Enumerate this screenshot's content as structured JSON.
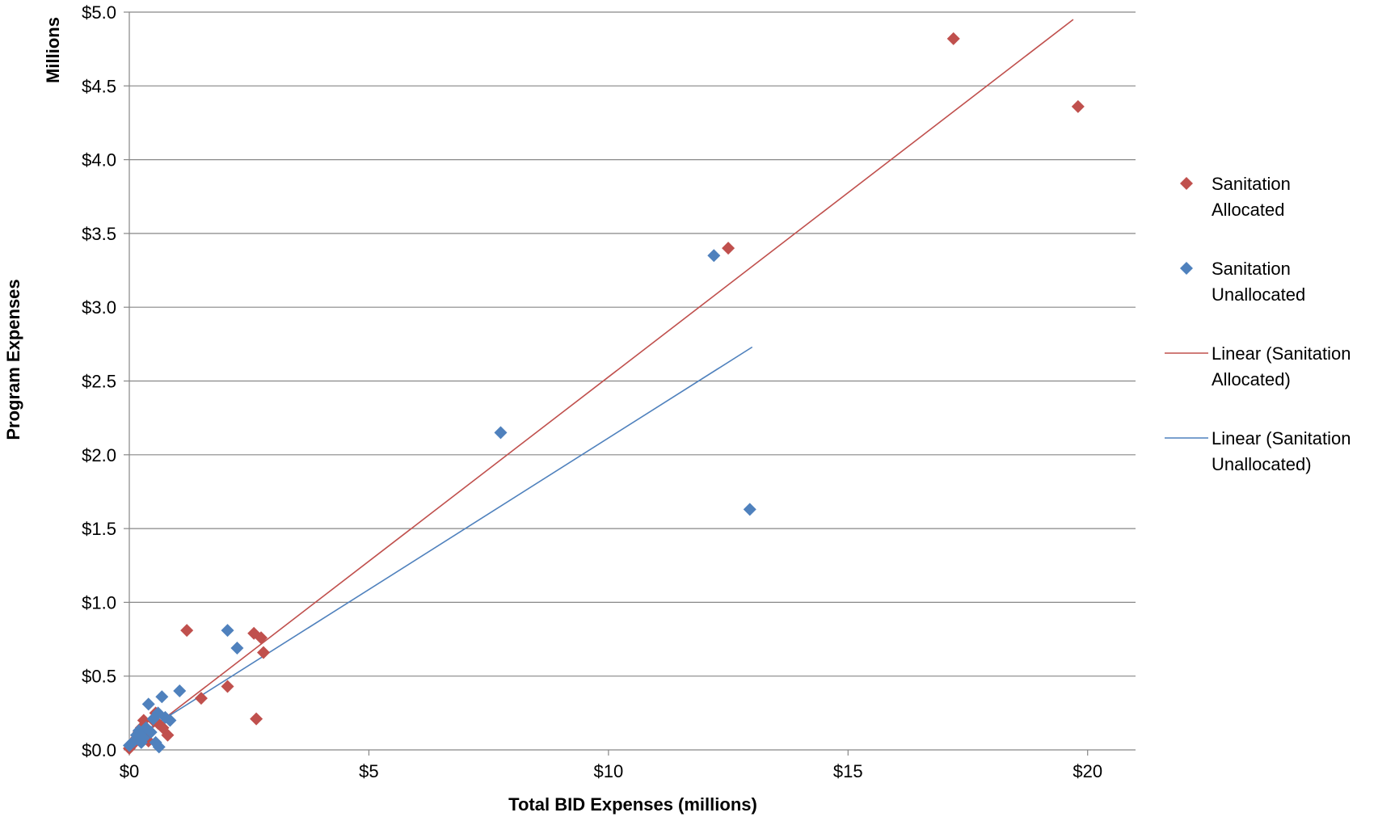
{
  "chart_data": {
    "type": "scatter",
    "title": "",
    "xlabel": "Total BID Expenses (millions)",
    "ylabel": "Program Expenses",
    "ylabel_units": "Millions",
    "xlim": [
      0,
      21
    ],
    "ylim": [
      0,
      5.0
    ],
    "x_ticks": [
      0,
      5,
      10,
      15,
      20
    ],
    "x_tick_labels": [
      "$0",
      "$5",
      "$10",
      "$15",
      "$20"
    ],
    "y_ticks": [
      0,
      0.5,
      1.0,
      1.5,
      2.0,
      2.5,
      3.0,
      3.5,
      4.0,
      4.5,
      5.0
    ],
    "y_tick_labels": [
      "$0.0",
      "$0.5",
      "$1.0",
      "$1.5",
      "$2.0",
      "$2.5",
      "$3.0",
      "$3.5",
      "$4.0",
      "$4.5",
      "$5.0"
    ],
    "grid": "horizontal",
    "legend_position": "right",
    "series": [
      {
        "name": "Sanitation Allocated",
        "name_lines": [
          "Sanitation",
          "Allocated"
        ],
        "kind": "scatter",
        "marker": "diamond",
        "color": "#C0504D",
        "points": [
          [
            0.0,
            0.01
          ],
          [
            0.05,
            0.03
          ],
          [
            0.1,
            0.05
          ],
          [
            0.15,
            0.08
          ],
          [
            0.2,
            0.12
          ],
          [
            0.25,
            0.15
          ],
          [
            0.3,
            0.2
          ],
          [
            0.35,
            0.1
          ],
          [
            0.4,
            0.06
          ],
          [
            0.5,
            0.2
          ],
          [
            0.55,
            0.25
          ],
          [
            0.6,
            0.18
          ],
          [
            0.7,
            0.15
          ],
          [
            0.8,
            0.1
          ],
          [
            1.2,
            0.81
          ],
          [
            1.5,
            0.35
          ],
          [
            2.05,
            0.43
          ],
          [
            2.6,
            0.79
          ],
          [
            2.65,
            0.21
          ],
          [
            2.75,
            0.76
          ],
          [
            2.8,
            0.66
          ],
          [
            12.5,
            3.4
          ],
          [
            17.2,
            4.82
          ],
          [
            19.8,
            4.36
          ]
        ]
      },
      {
        "name": "Sanitation Unallocated",
        "name_lines": [
          "Sanitation",
          "Unallocated"
        ],
        "kind": "scatter",
        "marker": "diamond",
        "color": "#4F81BD",
        "points": [
          [
            0.0,
            0.03
          ],
          [
            0.1,
            0.06
          ],
          [
            0.15,
            0.1
          ],
          [
            0.2,
            0.13
          ],
          [
            0.25,
            0.05
          ],
          [
            0.3,
            0.08
          ],
          [
            0.35,
            0.15
          ],
          [
            0.4,
            0.31
          ],
          [
            0.45,
            0.12
          ],
          [
            0.5,
            0.21
          ],
          [
            0.55,
            0.05
          ],
          [
            0.6,
            0.25
          ],
          [
            0.62,
            0.02
          ],
          [
            0.68,
            0.36
          ],
          [
            0.75,
            0.22
          ],
          [
            0.85,
            0.2
          ],
          [
            1.05,
            0.4
          ],
          [
            2.05,
            0.81
          ],
          [
            2.25,
            0.69
          ],
          [
            7.75,
            2.15
          ],
          [
            12.2,
            3.35
          ],
          [
            12.95,
            1.63
          ]
        ]
      },
      {
        "name": "Linear (Sanitation Allocated)",
        "name_lines": [
          "Linear (Sanitation",
          "Allocated)"
        ],
        "kind": "line",
        "color": "#C0504D",
        "points": [
          [
            0.0,
            0.03
          ],
          [
            19.7,
            4.95
          ]
        ]
      },
      {
        "name": "Linear (Sanitation Unallocated)",
        "name_lines": [
          "Linear (Sanitation",
          "Unallocated)"
        ],
        "kind": "line",
        "color": "#4F81BD",
        "points": [
          [
            0.0,
            0.06
          ],
          [
            13.0,
            2.73
          ]
        ]
      }
    ]
  }
}
